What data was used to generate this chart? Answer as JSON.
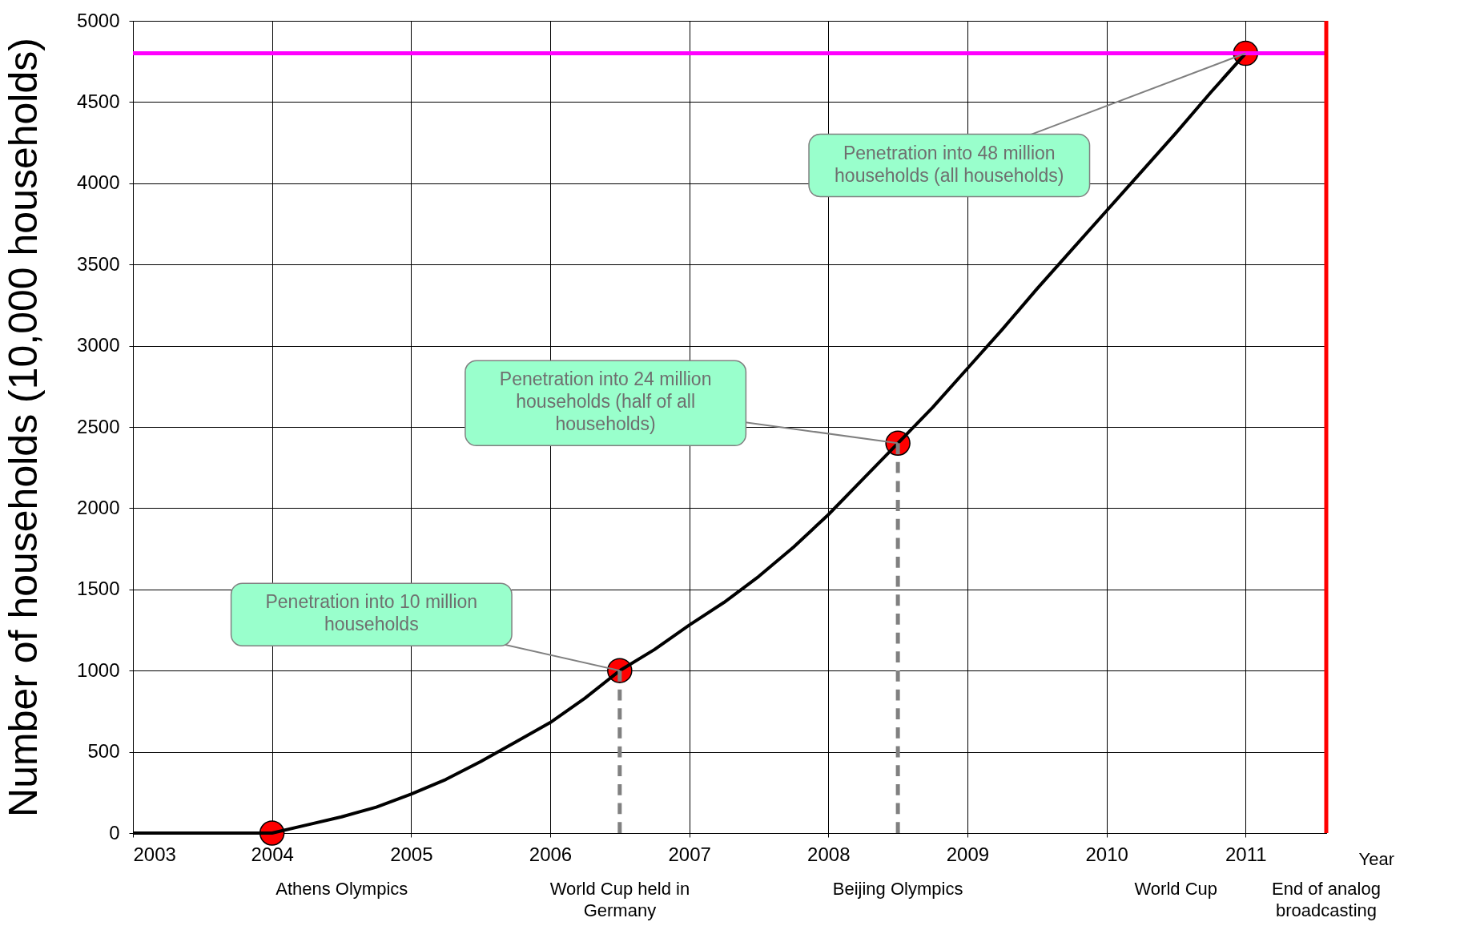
{
  "chart_data": {
    "type": "line",
    "xlabel": "Year",
    "ylabel": "Number of households (10,000 households)",
    "xlim": [
      2003,
      2011.58
    ],
    "xticks": [
      2003,
      2004,
      2005,
      2006,
      2007,
      2008,
      2009,
      2010,
      2011
    ],
    "ylim": [
      0,
      5000
    ],
    "yticks": [
      0,
      500,
      1000,
      1500,
      2000,
      2500,
      3000,
      3500,
      4000,
      4500,
      5000
    ],
    "grid": true,
    "series": [
      {
        "color": "#000000",
        "line_style": "solid",
        "x": [
          2003,
          2003.5,
          2004,
          2004.25,
          2004.5,
          2004.75,
          2005,
          2005.25,
          2005.5,
          2005.75,
          2006,
          2006.25,
          2006.5,
          2006.75,
          2007,
          2007.25,
          2007.5,
          2007.75,
          2008,
          2008.25,
          2008.5,
          2008.75,
          2009,
          2009.25,
          2009.5,
          2009.75,
          2010,
          2010.25,
          2010.5,
          2010.75,
          2011
        ],
        "values": [
          0,
          0,
          0,
          50,
          100,
          160,
          240,
          330,
          440,
          560,
          680,
          830,
          1000,
          1130,
          1280,
          1420,
          1580,
          1760,
          1960,
          2180,
          2400,
          2620,
          2860,
          3100,
          3350,
          3590,
          3830,
          4070,
          4310,
          4560,
          4800
        ]
      },
      {
        "color": "#808080",
        "line_style": "dashed",
        "x": [
          2006.5,
          2006.5
        ],
        "values": [
          0,
          1000
        ]
      },
      {
        "color": "#808080",
        "line_style": "dashed",
        "x": [
          2008.5,
          2008.5
        ],
        "values": [
          0,
          2400
        ]
      },
      {
        "type": "scatter",
        "color": "#ff0000",
        "marker": "circle",
        "x": [
          2004,
          2006.5,
          2008.5,
          2011
        ],
        "values": [
          0,
          1000,
          2400,
          4800
        ]
      }
    ],
    "ref_lines": [
      {
        "axis": "y",
        "value": 4800,
        "color": "#ff00ff"
      },
      {
        "axis": "x",
        "value": 2011.58,
        "color": "#ff0000"
      }
    ],
    "annotations": [
      {
        "text": "Penetration into 10 million households",
        "x": 2006.5,
        "y": 1000
      },
      {
        "text": "Penetration into 24 million households (half of all households)",
        "x": 2008.5,
        "y": 2400
      },
      {
        "text": "Penetration into 48 million households (all households)",
        "x": 2011,
        "y": 4800
      },
      "Athens Olympics",
      "World Cup held in Germany",
      "Beijing Olympics",
      "World Cup",
      "End of analog broadcasting"
    ]
  }
}
